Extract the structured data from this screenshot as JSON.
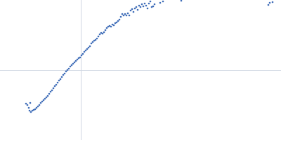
{
  "chart_data": {
    "type": "scatter",
    "x": [
      37,
      39,
      41,
      43,
      42,
      44,
      46,
      48,
      50,
      52,
      54,
      56,
      58,
      60,
      62,
      64,
      66,
      68,
      70,
      72,
      74,
      76,
      78,
      80,
      82,
      84,
      86,
      88,
      90,
      92,
      94,
      96,
      98,
      100,
      102,
      104,
      106,
      108,
      110,
      112,
      114,
      116,
      118,
      120,
      122,
      124,
      126,
      128,
      130,
      132,
      134,
      136,
      138,
      140,
      142,
      144,
      146,
      148,
      150,
      152,
      154,
      156,
      158,
      160,
      162,
      164,
      166,
      168,
      170,
      172,
      174,
      176,
      178,
      180,
      182,
      184,
      186,
      188,
      190,
      192,
      194,
      196,
      198,
      200,
      202,
      204,
      206,
      208,
      210,
      212,
      214,
      216,
      218,
      220,
      228,
      232,
      258,
      382,
      384,
      388
    ],
    "values": [
      52,
      50,
      46,
      53,
      42,
      40,
      42,
      43,
      44,
      46,
      48,
      50,
      53,
      55,
      57,
      59,
      61,
      63,
      66,
      69,
      71,
      74,
      77,
      79,
      82,
      85,
      87,
      90,
      93,
      95,
      98,
      100,
      102,
      105,
      107,
      109,
      111,
      113,
      115,
      117,
      118,
      121,
      123,
      126,
      128,
      130,
      132,
      134,
      138,
      140,
      142,
      143,
      145,
      148,
      151,
      153,
      152,
      154,
      157,
      160,
      162,
      163,
      162,
      165,
      164,
      167,
      168,
      170,
      172,
      176,
      180,
      178,
      180,
      178,
      181,
      178,
      185,
      187,
      183,
      188,
      190,
      186,
      192,
      190,
      194,
      191,
      195,
      192,
      188,
      195,
      198,
      190,
      191,
      194,
      196,
      198,
      199,
      193,
      196,
      197
    ],
    "color": "#3f6db8",
    "xlim": [
      0,
      400
    ],
    "ylim": [
      0,
      200
    ],
    "crosshair": {
      "x": 115,
      "y": 100
    }
  }
}
